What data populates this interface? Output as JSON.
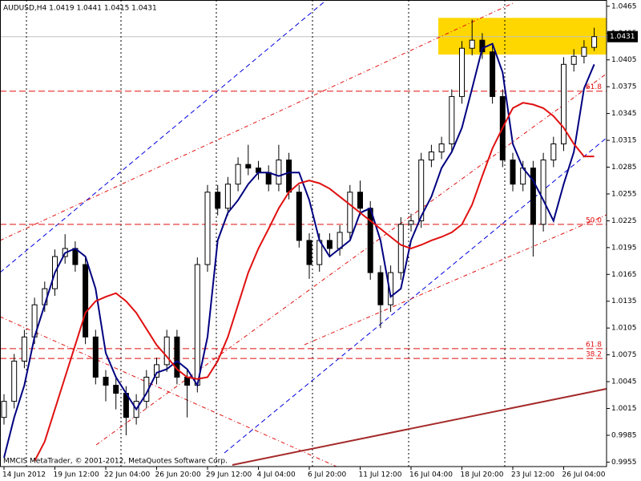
{
  "chart_data": {
    "type": "candlestick",
    "title": "AUDUSD,H4  1.0419 1.0441 1.0415 1.0431",
    "footer": "MMCIS MetaTrader, © 2001-2012, MetaQuotes Software Corp.",
    "categories": [
      "14 Jun 2012",
      null,
      null,
      null,
      null,
      "19 Jun 12:00",
      null,
      null,
      null,
      null,
      "22 Jun 04:00",
      null,
      null,
      null,
      null,
      "26 Jun 20:00",
      null,
      null,
      null,
      null,
      "29 Jun 12:00",
      null,
      null,
      null,
      null,
      "4 Jul 04:00",
      null,
      null,
      null,
      null,
      "6 Jul 20:00",
      null,
      null,
      null,
      null,
      "11 Jul 12:00",
      null,
      null,
      null,
      null,
      "16 Jul 04:00",
      null,
      null,
      null,
      null,
      "18 Jul 20:00",
      null,
      null,
      null,
      null,
      "23 Jul 12:00",
      null,
      null,
      null,
      null,
      "26 Jul 04:00",
      null,
      null,
      null
    ],
    "open": [
      1.0005,
      1.0023,
      1.0068,
      1.0095,
      1.0131,
      1.0149,
      1.0185,
      1.0194,
      1.0176,
      1.0095,
      1.005,
      1.0041,
      1.0032,
      1.0005,
      1.0023,
      1.005,
      1.0064,
      1.0095,
      1.005,
      1.0041,
      1.0176,
      1.0257,
      1.0239,
      1.0266,
      1.0288,
      1.0284,
      1.0279,
      1.0266,
      1.0293,
      1.0257,
      1.0203,
      1.0176,
      1.0203,
      1.0194,
      1.0212,
      1.0257,
      1.0239,
      1.0167,
      1.0131,
      1.0167,
      1.0221,
      1.0225,
      1.0293,
      1.0302,
      1.0311,
      1.0364,
      1.0418,
      1.0427,
      1.0414,
      1.0364,
      1.0293,
      1.0266,
      1.0284,
      1.0221,
      1.0293,
      1.0311,
      1.04,
      1.0409,
      1.0419
    ],
    "high": [
      1.0031,
      1.0076,
      1.0103,
      1.0139,
      1.0157,
      1.0193,
      1.021,
      1.0202,
      1.0184,
      1.0103,
      1.0058,
      1.0049,
      1.004,
      1.0031,
      1.0058,
      1.0072,
      1.0103,
      1.0103,
      1.0058,
      1.0184,
      1.0265,
      1.0265,
      1.0274,
      1.0296,
      1.031,
      1.0292,
      1.0287,
      1.031,
      1.0301,
      1.0265,
      1.0211,
      1.0211,
      1.0211,
      1.022,
      1.0265,
      1.027,
      1.0247,
      1.0175,
      1.0175,
      1.0229,
      1.0233,
      1.0301,
      1.031,
      1.0319,
      1.0372,
      1.0426,
      1.045,
      1.0435,
      1.0422,
      1.0372,
      1.0301,
      1.0292,
      1.0292,
      1.0301,
      1.0319,
      1.0408,
      1.0417,
      1.0427,
      1.0441
    ],
    "low": [
      0.9997,
      1.0015,
      1.006,
      1.0087,
      1.0123,
      1.0141,
      1.0177,
      1.0168,
      1.0087,
      1.0042,
      1.0023,
      1.0014,
      0.9985,
      0.9997,
      1.0015,
      1.0042,
      1.0056,
      1.0042,
      1.0005,
      1.0033,
      1.0168,
      1.0231,
      1.0231,
      1.0258,
      1.0276,
      1.0271,
      1.0258,
      1.0258,
      1.0249,
      1.0195,
      1.016,
      1.0168,
      1.0186,
      1.0186,
      1.0204,
      1.0231,
      1.0159,
      1.0105,
      1.0123,
      1.0159,
      1.0213,
      1.0217,
      1.0285,
      1.0294,
      1.0303,
      1.0356,
      1.041,
      1.0406,
      1.0356,
      1.0285,
      1.0258,
      1.0258,
      1.0185,
      1.0213,
      1.0285,
      1.0303,
      1.0392,
      1.0401,
      1.0415
    ],
    "close": [
      1.0023,
      1.0068,
      1.0095,
      1.0131,
      1.0149,
      1.0185,
      1.0194,
      1.0176,
      1.0095,
      1.005,
      1.0041,
      1.0032,
      1.0005,
      1.0023,
      1.005,
      1.0064,
      1.0095,
      1.005,
      1.0041,
      1.0176,
      1.0257,
      1.0239,
      1.0266,
      1.0288,
      1.0284,
      1.0279,
      1.0266,
      1.0293,
      1.0257,
      1.0203,
      1.0176,
      1.0203,
      1.0194,
      1.0212,
      1.0257,
      1.0239,
      1.0167,
      1.0131,
      1.0167,
      1.0221,
      1.0225,
      1.0293,
      1.0302,
      1.0311,
      1.0364,
      1.0418,
      1.0427,
      1.0414,
      1.0364,
      1.0293,
      1.0266,
      1.0284,
      1.0221,
      1.0293,
      1.0311,
      1.04,
      1.0409,
      1.0419,
      1.0431
    ],
    "overlays": [
      {
        "color": "#000080",
        "values": [
          0.996,
          1.0005,
          1.0041,
          1.0095,
          1.0131,
          1.0167,
          1.0189,
          1.0194,
          1.0185,
          1.0149,
          1.0077,
          1.005,
          1.0032,
          1.0014,
          1.0032,
          1.0055,
          1.0059,
          1.0068,
          1.0059,
          1.0041,
          1.0095,
          1.0203,
          1.0234,
          1.0248,
          1.0266,
          1.0279,
          1.0279,
          1.0275,
          1.0279,
          1.0279,
          1.0248,
          1.0203,
          1.0185,
          1.0194,
          1.0203,
          1.0234,
          1.0239,
          1.0203,
          1.014,
          1.0149,
          1.0203,
          1.023,
          1.0252,
          1.0284,
          1.0302,
          1.0329,
          1.0373,
          1.0418,
          1.0423,
          1.0391,
          1.0311,
          1.0284,
          1.027,
          1.0248,
          1.0225,
          1.0266,
          1.0302,
          1.0373,
          1.04
        ]
      },
      {
        "color": "#e01010",
        "values": [
          null,
          null,
          null,
          0.9956,
          0.9978,
          1.0014,
          1.005,
          1.0086,
          1.0122,
          1.0135,
          1.014,
          1.0144,
          1.0135,
          1.0122,
          1.0104,
          1.0086,
          1.0073,
          1.0059,
          1.005,
          1.0048,
          1.005,
          1.0068,
          1.0095,
          1.0131,
          1.0167,
          1.0194,
          1.0216,
          1.0239,
          1.0257,
          1.0267,
          1.027,
          1.0267,
          1.0261,
          1.0252,
          1.0243,
          1.0234,
          1.0225,
          1.0216,
          1.0207,
          1.0198,
          1.0194,
          1.0198,
          1.0203,
          1.0207,
          1.0212,
          1.0221,
          1.0243,
          1.0275,
          1.0306,
          1.0329,
          1.0351,
          1.0357,
          1.0355,
          1.0351,
          1.0342,
          1.0329,
          1.0311,
          1.0297,
          1.0297
        ]
      }
    ],
    "levels": [
      {
        "label": "61.8",
        "value": 1.037
      },
      {
        "label": "50.0",
        "value": 1.0221
      },
      {
        "label": "61.8",
        "value": 1.0082
      },
      {
        "label": "38.2",
        "value": 1.0071
      }
    ],
    "level_color": "#e01010",
    "zone": {
      "from": 1.0411,
      "to": 1.0452,
      "color": "#ffd700"
    },
    "current_price": {
      "value": 1.0431,
      "label": "1.0431"
    },
    "ylim": [
      0.995,
      1.0472
    ],
    "yticks": [
      1.0465,
      1.0435,
      1.0405,
      1.0375,
      1.0345,
      1.0315,
      1.0285,
      1.0255,
      1.0225,
      1.0195,
      1.0165,
      1.0135,
      1.0105,
      1.0075,
      1.0045,
      1.0015,
      0.9985,
      0.9955
    ]
  }
}
